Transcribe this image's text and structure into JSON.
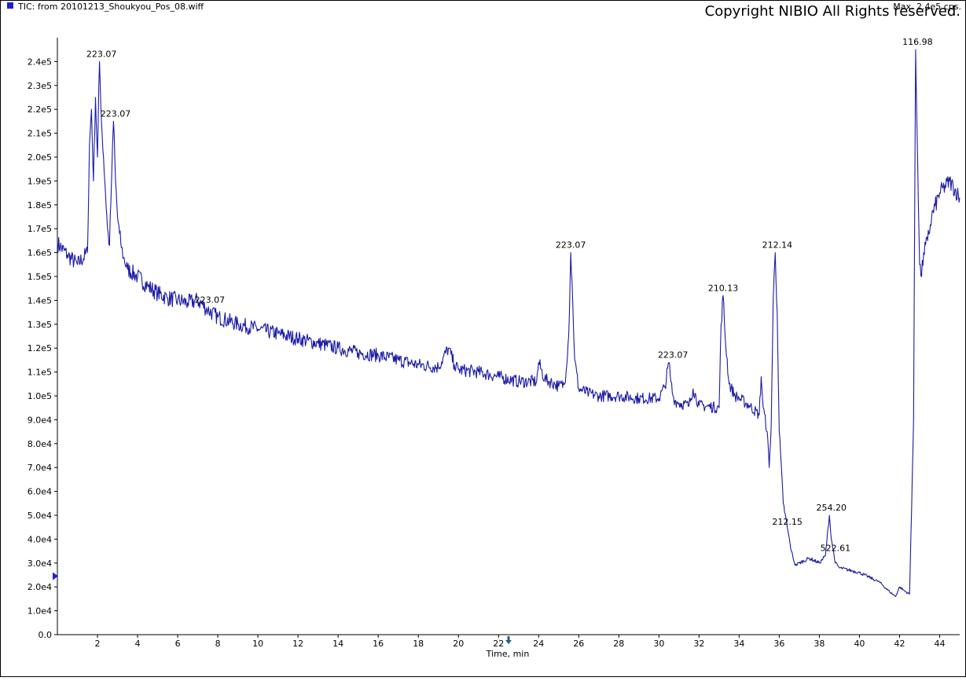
{
  "header": {
    "title": "TIC: from 20101213_Shoukyou_Pos_08.wiff",
    "max_label": "Max. 2.4e5 cps.",
    "copyright": "Copyright NIBIO All Rights reserved."
  },
  "colors": {
    "trace": "#1a1aa6",
    "header_marker": "#1f1fcf",
    "axis": "#000000",
    "marker_arrow": "#1f5f8f"
  },
  "icons": {
    "title_marker": "square-marker-icon",
    "y_marker": "triangle-marker-icon",
    "x_marker": "down-arrow-icon"
  },
  "chart_data": {
    "type": "line",
    "title": "TIC: from 20101213_Shoukyou_Pos_08.wiff",
    "xlabel": "Time, min",
    "ylabel": "",
    "xlim": [
      0,
      45
    ],
    "ylim": [
      0,
      250000
    ],
    "x_ticks": [
      2,
      4,
      6,
      8,
      10,
      12,
      14,
      16,
      18,
      20,
      22,
      24,
      26,
      28,
      30,
      32,
      34,
      36,
      38,
      40,
      42,
      44
    ],
    "y_ticks": [
      {
        "value": 0,
        "label": "0.0"
      },
      {
        "value": 10000,
        "label": "1.0e4"
      },
      {
        "value": 20000,
        "label": "2.0e4"
      },
      {
        "value": 30000,
        "label": "3.0e4"
      },
      {
        "value": 40000,
        "label": "4.0e4"
      },
      {
        "value": 50000,
        "label": "5.0e4"
      },
      {
        "value": 60000,
        "label": "6.0e4"
      },
      {
        "value": 70000,
        "label": "7.0e4"
      },
      {
        "value": 80000,
        "label": "8.0e4"
      },
      {
        "value": 90000,
        "label": "9.0e4"
      },
      {
        "value": 100000,
        "label": "1.0e5"
      },
      {
        "value": 110000,
        "label": "1.1e5"
      },
      {
        "value": 120000,
        "label": "1.2e5"
      },
      {
        "value": 130000,
        "label": "1.3e5"
      },
      {
        "value": 140000,
        "label": "1.4e5"
      },
      {
        "value": 150000,
        "label": "1.5e5"
      },
      {
        "value": 160000,
        "label": "1.6e5"
      },
      {
        "value": 170000,
        "label": "1.7e5"
      },
      {
        "value": 180000,
        "label": "1.8e5"
      },
      {
        "value": 190000,
        "label": "1.9e5"
      },
      {
        "value": 200000,
        "label": "2.0e5"
      },
      {
        "value": 210000,
        "label": "2.1e5"
      },
      {
        "value": 220000,
        "label": "2.2e5"
      },
      {
        "value": 230000,
        "label": "2.3e5"
      },
      {
        "value": 240000,
        "label": "2.4e5"
      }
    ],
    "grid": false,
    "legend": "none",
    "y_marker_value": 24500,
    "x_marker_value": 22.5,
    "series": [
      {
        "x": [
          0,
          0.5,
          1,
          1.5,
          1.6,
          1.7,
          1.8,
          1.9,
          2.0,
          2.1,
          2.2,
          2.3,
          2.4,
          2.5,
          2.6,
          2.7,
          2.75,
          2.8,
          2.9,
          3.0,
          3.1,
          3.2,
          3.3,
          3.5,
          4.0,
          4.5,
          5.0,
          5.5,
          6.0,
          6.5,
          7.0,
          7.5,
          8.0,
          9.0,
          10.0,
          11.0,
          12.0,
          13.0,
          14.0,
          15.0,
          16.0,
          17.0,
          18.0,
          19.0,
          19.5,
          19.8,
          20.0,
          21.0,
          22.0,
          23.0,
          23.9,
          24.0,
          24.3,
          24.8,
          25.0,
          25.3,
          25.5,
          25.6,
          25.7,
          25.8,
          26.0,
          26.5,
          27.0,
          28.0,
          29.0,
          30.0,
          30.3,
          30.5,
          30.6,
          30.7,
          30.8,
          31.0,
          31.5,
          31.7,
          32.0,
          33.0,
          33.1,
          33.2,
          33.3,
          33.5,
          33.8,
          34.0,
          34.5,
          35.0,
          35.1,
          35.2,
          35.4,
          35.5,
          35.6,
          35.7,
          35.8,
          35.9,
          36.0,
          36.2,
          36.4,
          36.6,
          36.8,
          37.0,
          37.5,
          38.0,
          38.3,
          38.5,
          38.6,
          38.8,
          39.0,
          40.0,
          41.0,
          41.5,
          41.8,
          42.0,
          42.3,
          42.5,
          42.7,
          42.8,
          42.9,
          43.0,
          43.1,
          43.2,
          43.4,
          43.6,
          44.0,
          44.5,
          45.0
        ],
        "y": [
          164000,
          159000,
          155000,
          160000,
          205000,
          220000,
          190000,
          225000,
          200000,
          240000,
          215000,
          200000,
          185000,
          170000,
          163000,
          190000,
          205000,
          215000,
          190000,
          175000,
          168000,
          162000,
          158000,
          153000,
          150000,
          146000,
          143000,
          141000,
          140000,
          139000,
          140000,
          136000,
          133000,
          130000,
          128000,
          126000,
          124000,
          122000,
          120000,
          118000,
          117000,
          115000,
          113000,
          112000,
          120000,
          113000,
          111000,
          110000,
          108000,
          106000,
          106000,
          114000,
          107000,
          105000,
          104000,
          105000,
          125000,
          160000,
          140000,
          115000,
          103000,
          101000,
          100000,
          100000,
          99000,
          99000,
          104000,
          114000,
          106000,
          100000,
          98000,
          97000,
          96000,
          103000,
          96000,
          95000,
          130000,
          142000,
          125000,
          105000,
          100000,
          99000,
          96000,
          92000,
          108000,
          95000,
          85000,
          70000,
          88000,
          140000,
          160000,
          135000,
          85000,
          55000,
          45000,
          35000,
          29000,
          30000,
          32000,
          30000,
          33000,
          50000,
          40000,
          30000,
          28000,
          26000,
          22000,
          18000,
          16000,
          20000,
          18000,
          17000,
          90000,
          245000,
          200000,
          155000,
          150000,
          160000,
          165000,
          175000,
          185000,
          190000,
          183000
        ]
      }
    ],
    "peak_labels": [
      {
        "text": "223.07",
        "x": 2.2,
        "y": 240000
      },
      {
        "text": "223.07",
        "x": 2.9,
        "y": 215000
      },
      {
        "text": "223.07",
        "x": 7.6,
        "y": 137000
      },
      {
        "text": "223.07",
        "x": 25.6,
        "y": 160000
      },
      {
        "text": "223.07",
        "x": 30.7,
        "y": 114000
      },
      {
        "text": "210.13",
        "x": 33.2,
        "y": 142000
      },
      {
        "text": "212.14",
        "x": 35.9,
        "y": 160000
      },
      {
        "text": "212.15",
        "x": 36.4,
        "y": 44000
      },
      {
        "text": "254.20",
        "x": 38.6,
        "y": 50000
      },
      {
        "text": "522.61",
        "x": 38.8,
        "y": 33000
      },
      {
        "text": "116.98",
        "x": 42.9,
        "y": 245000
      }
    ]
  }
}
